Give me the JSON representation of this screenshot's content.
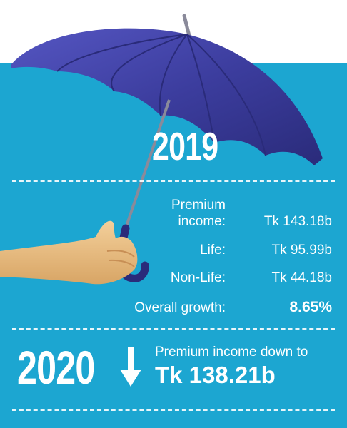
{
  "year_2019": "2019",
  "stats": {
    "premium_label_line1": "Premium",
    "premium_label_line2": "income:",
    "premium_value": "Tk 143.18b",
    "life_label": "Life:",
    "life_value": "Tk 95.99b",
    "nonlife_label": "Non-Life:",
    "nonlife_value": "Tk 44.18b",
    "growth_label": "Overall growth:",
    "growth_value": "8.65%"
  },
  "year_2020": "2020",
  "summary": {
    "line1": "Premium income down to",
    "line2": "Tk 138.21b"
  },
  "colors": {
    "panel": "#1ca6d1",
    "umbrella": "#3c3d9e",
    "text": "#ffffff"
  },
  "icons": [
    "umbrella-icon",
    "hand-illustration",
    "down-arrow-icon"
  ]
}
